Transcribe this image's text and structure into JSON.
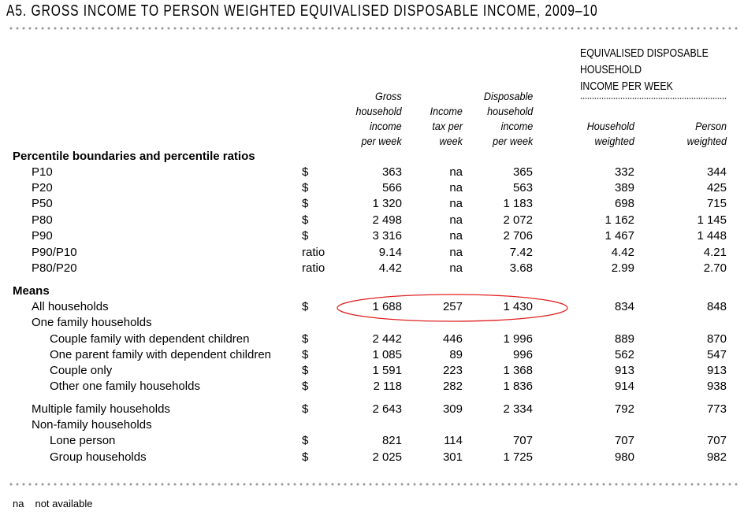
{
  "title": "A5. GROSS INCOME TO PERSON WEIGHTED EQUIVALISED DISPOSABLE INCOME, 2009–10",
  "group_header": [
    "EQUIVALISED DISPOSABLE",
    "HOUSEHOLD",
    "INCOME PER WEEK"
  ],
  "columns": [
    [
      "Gross",
      "household",
      "income",
      "per week"
    ],
    [
      "Income",
      "tax per",
      "week"
    ],
    [
      "Disposable",
      "household",
      "income",
      "per week"
    ],
    [
      "Household",
      "weighted"
    ],
    [
      "Person",
      "weighted"
    ]
  ],
  "rows": [
    {
      "label": "Percentile boundaries and percentile ratios",
      "level": 0,
      "heading": true
    },
    {
      "label": "P10",
      "level": 1,
      "unit": "$",
      "values": [
        "363",
        "na",
        "365",
        "332",
        "344"
      ]
    },
    {
      "label": "P20",
      "level": 1,
      "unit": "$",
      "values": [
        "566",
        "na",
        "563",
        "389",
        "425"
      ]
    },
    {
      "label": "P50",
      "level": 1,
      "unit": "$",
      "values": [
        "1 320",
        "na",
        "1 183",
        "698",
        "715"
      ]
    },
    {
      "label": "P80",
      "level": 1,
      "unit": "$",
      "values": [
        "2 498",
        "na",
        "2 072",
        "1 162",
        "1 145"
      ]
    },
    {
      "label": "P90",
      "level": 1,
      "unit": "$",
      "values": [
        "3 316",
        "na",
        "2 706",
        "1 467",
        "1 448"
      ]
    },
    {
      "label": "P90/P10",
      "level": 1,
      "unit": "ratio",
      "values": [
        "9.14",
        "na",
        "7.42",
        "4.42",
        "4.21"
      ]
    },
    {
      "label": "P80/P20",
      "level": 1,
      "unit": "ratio",
      "values": [
        "4.42",
        "na",
        "3.68",
        "2.99",
        "2.70"
      ]
    },
    {
      "label": "Means",
      "level": 0,
      "heading": true
    },
    {
      "label": "All households",
      "level": 1,
      "unit": "$",
      "values": [
        "1 688",
        "257",
        "1 430",
        "834",
        "848"
      ],
      "highlighted": true
    },
    {
      "label": "One family households",
      "level": 1
    },
    {
      "label": "Couple family with dependent children",
      "level": 2,
      "unit": "$",
      "values": [
        "2 442",
        "446",
        "1 996",
        "889",
        "870"
      ]
    },
    {
      "label": "One parent family with dependent children",
      "level": 2,
      "unit": "$",
      "values": [
        "1 085",
        "89",
        "996",
        "562",
        "547"
      ]
    },
    {
      "label": "Couple only",
      "level": 2,
      "unit": "$",
      "values": [
        "1 591",
        "223",
        "1 368",
        "913",
        "913"
      ]
    },
    {
      "label": "Other one family households",
      "level": 2,
      "unit": "$",
      "values": [
        "2 118",
        "282",
        "1 836",
        "914",
        "938"
      ]
    },
    {
      "label": "Multiple family households",
      "level": 1,
      "unit": "$",
      "values": [
        "2 643",
        "309",
        "2 334",
        "792",
        "773"
      ]
    },
    {
      "label": "Non-family households",
      "level": 1
    },
    {
      "label": "Lone person",
      "level": 2,
      "unit": "$",
      "values": [
        "821",
        "114",
        "707",
        "707",
        "707"
      ]
    },
    {
      "label": "Group households",
      "level": 2,
      "unit": "$",
      "values": [
        "2 025",
        "301",
        "1 725",
        "980",
        "982"
      ]
    }
  ],
  "footnote": {
    "abbr": "na",
    "text": "not available"
  },
  "highlight_color": "#e02020"
}
